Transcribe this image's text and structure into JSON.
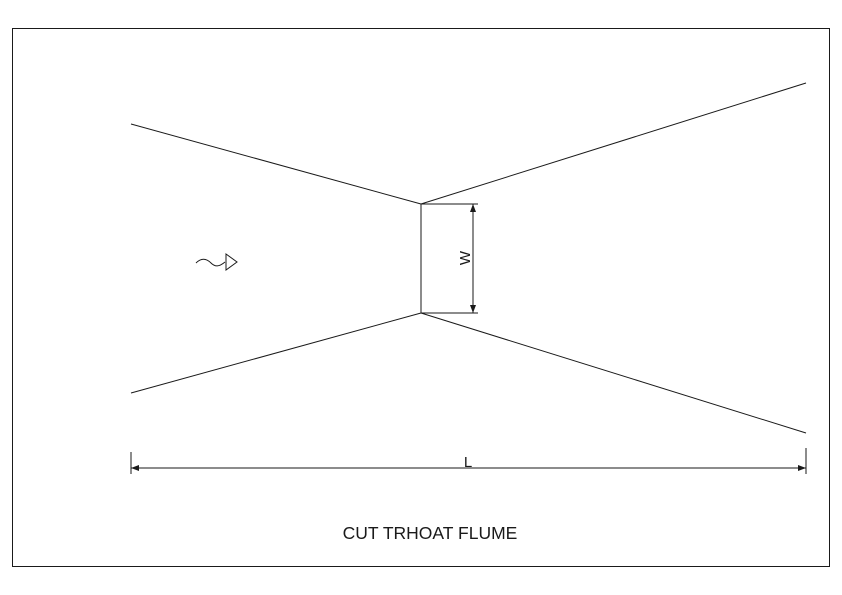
{
  "diagram": {
    "title": "CUT TRHOAT FLUME",
    "dimensions": {
      "throat_width_label": "W",
      "length_label": "L"
    },
    "flow_direction": "left-to-right",
    "flow_symbol": "wavy-arrow-icon",
    "line_color": "#1a1a1a",
    "background_color": "#ffffff"
  }
}
